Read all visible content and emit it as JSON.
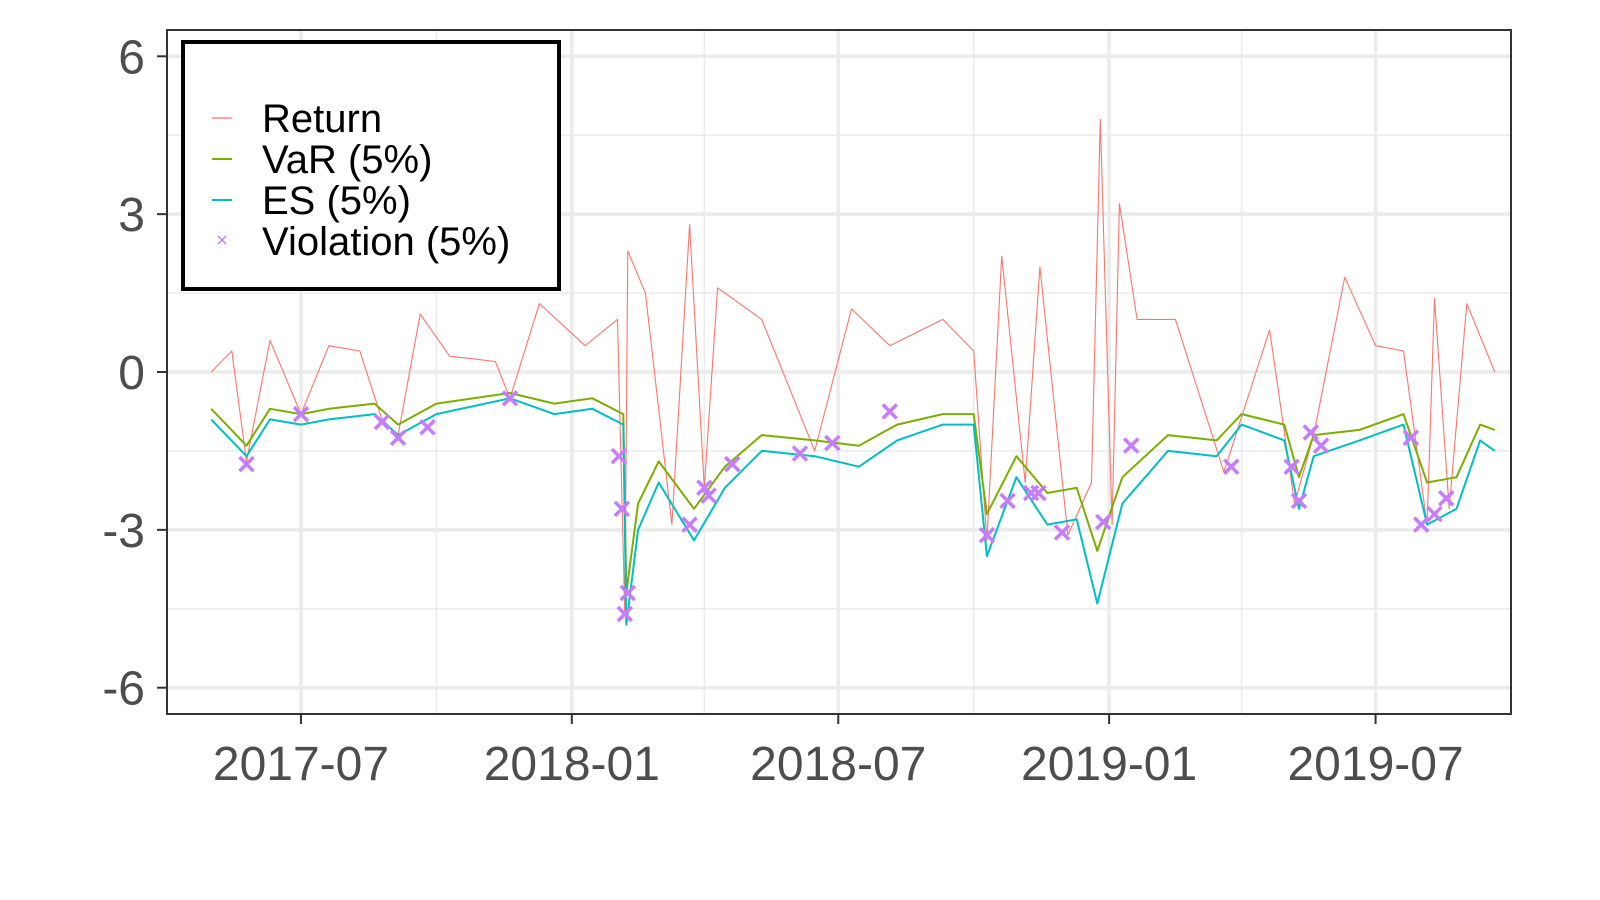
{
  "chart_data": {
    "type": "line",
    "title": "",
    "xlabel": "",
    "ylabel": "",
    "xlim": [
      "2017-04-01",
      "2019-10-01"
    ],
    "ylim": [
      -6.5,
      6.5
    ],
    "x_ticks": [
      "2017-07",
      "2018-01",
      "2018-07",
      "2019-01",
      "2019-07"
    ],
    "y_ticks": [
      "6",
      "3",
      "0",
      "-3",
      "-6"
    ],
    "grid": true,
    "legend_position": "top-left",
    "series": [
      {
        "name": "Return",
        "color": "#F8766D",
        "style": "line",
        "points": [
          [
            "2017-05-01",
            0.0
          ],
          [
            "2017-05-15",
            0.4
          ],
          [
            "2017-05-25",
            -1.7
          ],
          [
            "2017-06-10",
            0.6
          ],
          [
            "2017-07-01",
            -0.8
          ],
          [
            "2017-07-20",
            0.5
          ],
          [
            "2017-08-10",
            0.4
          ],
          [
            "2017-08-25",
            -0.9
          ],
          [
            "2017-09-05",
            -1.2
          ],
          [
            "2017-09-20",
            1.1
          ],
          [
            "2017-10-10",
            0.3
          ],
          [
            "2017-11-10",
            0.2
          ],
          [
            "2017-11-20",
            -0.5
          ],
          [
            "2017-12-10",
            1.3
          ],
          [
            "2018-01-10",
            0.5
          ],
          [
            "2018-02-01",
            1.0
          ],
          [
            "2018-02-06",
            -4.6
          ],
          [
            "2018-02-08",
            2.3
          ],
          [
            "2018-02-20",
            1.5
          ],
          [
            "2018-03-10",
            -2.9
          ],
          [
            "2018-03-22",
            2.8
          ],
          [
            "2018-04-01",
            -2.2
          ],
          [
            "2018-04-10",
            1.6
          ],
          [
            "2018-05-10",
            1.0
          ],
          [
            "2018-06-15",
            -1.5
          ],
          [
            "2018-07-10",
            1.2
          ],
          [
            "2018-08-05",
            0.5
          ],
          [
            "2018-09-10",
            1.0
          ],
          [
            "2018-10-01",
            0.4
          ],
          [
            "2018-10-10",
            -3.2
          ],
          [
            "2018-10-20",
            2.2
          ],
          [
            "2018-11-05",
            -2.1
          ],
          [
            "2018-11-15",
            2.0
          ],
          [
            "2018-12-04",
            -3.1
          ],
          [
            "2018-12-20",
            -2.1
          ],
          [
            "2018-12-26",
            4.8
          ],
          [
            "2019-01-03",
            -2.9
          ],
          [
            "2019-01-08",
            3.2
          ],
          [
            "2019-01-20",
            1.0
          ],
          [
            "2019-02-15",
            1.0
          ],
          [
            "2019-03-20",
            -1.9
          ],
          [
            "2019-04-20",
            0.8
          ],
          [
            "2019-05-07",
            -2.5
          ],
          [
            "2019-05-20",
            -1.2
          ],
          [
            "2019-06-10",
            1.8
          ],
          [
            "2019-07-01",
            0.5
          ],
          [
            "2019-07-20",
            0.4
          ],
          [
            "2019-08-05",
            -2.9
          ],
          [
            "2019-08-10",
            1.4
          ],
          [
            "2019-08-20",
            -2.6
          ],
          [
            "2019-09-01",
            1.3
          ],
          [
            "2019-09-20",
            0.0
          ]
        ]
      },
      {
        "name": "VaR (5%)",
        "color": "#7CAE00",
        "style": "line",
        "points": [
          [
            "2017-05-01",
            -0.7
          ],
          [
            "2017-05-25",
            -1.4
          ],
          [
            "2017-06-10",
            -0.7
          ],
          [
            "2017-07-01",
            -0.8
          ],
          [
            "2017-07-20",
            -0.7
          ],
          [
            "2017-08-20",
            -0.6
          ],
          [
            "2017-09-05",
            -1.0
          ],
          [
            "2017-10-01",
            -0.6
          ],
          [
            "2017-11-20",
            -0.4
          ],
          [
            "2017-12-20",
            -0.6
          ],
          [
            "2018-01-15",
            -0.5
          ],
          [
            "2018-02-05",
            -0.8
          ],
          [
            "2018-02-07",
            -4.2
          ],
          [
            "2018-02-15",
            -2.5
          ],
          [
            "2018-03-01",
            -1.7
          ],
          [
            "2018-03-25",
            -2.6
          ],
          [
            "2018-04-15",
            -1.8
          ],
          [
            "2018-05-10",
            -1.2
          ],
          [
            "2018-06-15",
            -1.3
          ],
          [
            "2018-07-15",
            -1.4
          ],
          [
            "2018-08-10",
            -1.0
          ],
          [
            "2018-09-10",
            -0.8
          ],
          [
            "2018-10-01",
            -0.8
          ],
          [
            "2018-10-10",
            -2.7
          ],
          [
            "2018-10-30",
            -1.6
          ],
          [
            "2018-11-20",
            -2.3
          ],
          [
            "2018-12-10",
            -2.2
          ],
          [
            "2018-12-24",
            -3.4
          ],
          [
            "2019-01-10",
            -2.0
          ],
          [
            "2019-02-10",
            -1.2
          ],
          [
            "2019-03-15",
            -1.3
          ],
          [
            "2019-04-01",
            -0.8
          ],
          [
            "2019-04-30",
            -1.0
          ],
          [
            "2019-05-10",
            -2.0
          ],
          [
            "2019-05-20",
            -1.2
          ],
          [
            "2019-06-20",
            -1.1
          ],
          [
            "2019-07-20",
            -0.8
          ],
          [
            "2019-08-05",
            -2.1
          ],
          [
            "2019-08-25",
            -2.0
          ],
          [
            "2019-09-10",
            -1.0
          ],
          [
            "2019-09-20",
            -1.1
          ]
        ]
      },
      {
        "name": "ES (5%)",
        "color": "#00BFC4",
        "style": "line",
        "points": [
          [
            "2017-05-01",
            -0.9
          ],
          [
            "2017-05-25",
            -1.6
          ],
          [
            "2017-06-10",
            -0.9
          ],
          [
            "2017-07-01",
            -1.0
          ],
          [
            "2017-07-20",
            -0.9
          ],
          [
            "2017-08-20",
            -0.8
          ],
          [
            "2017-09-05",
            -1.2
          ],
          [
            "2017-10-01",
            -0.8
          ],
          [
            "2017-11-20",
            -0.5
          ],
          [
            "2017-12-20",
            -0.8
          ],
          [
            "2018-01-15",
            -0.7
          ],
          [
            "2018-02-05",
            -1.0
          ],
          [
            "2018-02-07",
            -4.8
          ],
          [
            "2018-02-15",
            -3.0
          ],
          [
            "2018-03-01",
            -2.1
          ],
          [
            "2018-03-25",
            -3.2
          ],
          [
            "2018-04-15",
            -2.2
          ],
          [
            "2018-05-10",
            -1.5
          ],
          [
            "2018-06-15",
            -1.6
          ],
          [
            "2018-07-15",
            -1.8
          ],
          [
            "2018-08-10",
            -1.3
          ],
          [
            "2018-09-10",
            -1.0
          ],
          [
            "2018-10-01",
            -1.0
          ],
          [
            "2018-10-10",
            -3.5
          ],
          [
            "2018-10-30",
            -2.0
          ],
          [
            "2018-11-20",
            -2.9
          ],
          [
            "2018-12-10",
            -2.8
          ],
          [
            "2018-12-24",
            -4.4
          ],
          [
            "2019-01-10",
            -2.5
          ],
          [
            "2019-02-10",
            -1.5
          ],
          [
            "2019-03-15",
            -1.6
          ],
          [
            "2019-04-01",
            -1.0
          ],
          [
            "2019-04-30",
            -1.3
          ],
          [
            "2019-05-10",
            -2.6
          ],
          [
            "2019-05-20",
            -1.6
          ],
          [
            "2019-06-20",
            -1.3
          ],
          [
            "2019-07-20",
            -1.0
          ],
          [
            "2019-08-05",
            -2.9
          ],
          [
            "2019-08-25",
            -2.6
          ],
          [
            "2019-09-10",
            -1.3
          ],
          [
            "2019-09-20",
            -1.5
          ]
        ]
      },
      {
        "name": "Violation (5%)",
        "color": "#C77CFF",
        "style": "points",
        "points": [
          [
            "2017-05-25",
            -1.75
          ],
          [
            "2017-07-01",
            -0.8
          ],
          [
            "2017-08-25",
            -0.95
          ],
          [
            "2017-09-05",
            -1.25
          ],
          [
            "2017-09-25",
            -1.05
          ],
          [
            "2017-11-20",
            -0.5
          ],
          [
            "2018-02-02",
            -1.6
          ],
          [
            "2018-02-04",
            -2.6
          ],
          [
            "2018-02-06",
            -4.6
          ],
          [
            "2018-02-08",
            -4.2
          ],
          [
            "2018-03-22",
            -2.9
          ],
          [
            "2018-04-01",
            -2.2
          ],
          [
            "2018-04-04",
            -2.35
          ],
          [
            "2018-04-20",
            -1.75
          ],
          [
            "2018-06-05",
            -1.55
          ],
          [
            "2018-06-27",
            -1.35
          ],
          [
            "2018-08-05",
            -0.75
          ],
          [
            "2018-10-10",
            -3.1
          ],
          [
            "2018-10-24",
            -2.45
          ],
          [
            "2018-11-09",
            -2.3
          ],
          [
            "2018-11-14",
            -2.3
          ],
          [
            "2018-11-30",
            -3.05
          ],
          [
            "2018-12-28",
            -2.85
          ],
          [
            "2019-01-16",
            -1.4
          ],
          [
            "2019-03-25",
            -1.8
          ],
          [
            "2019-05-05",
            -1.8
          ],
          [
            "2019-05-10",
            -2.45
          ],
          [
            "2019-05-18",
            -1.15
          ],
          [
            "2019-05-25",
            -1.4
          ],
          [
            "2019-07-25",
            -1.25
          ],
          [
            "2019-08-01",
            -2.9
          ],
          [
            "2019-08-10",
            -2.7
          ],
          [
            "2019-08-18",
            -2.4
          ]
        ]
      }
    ]
  }
}
